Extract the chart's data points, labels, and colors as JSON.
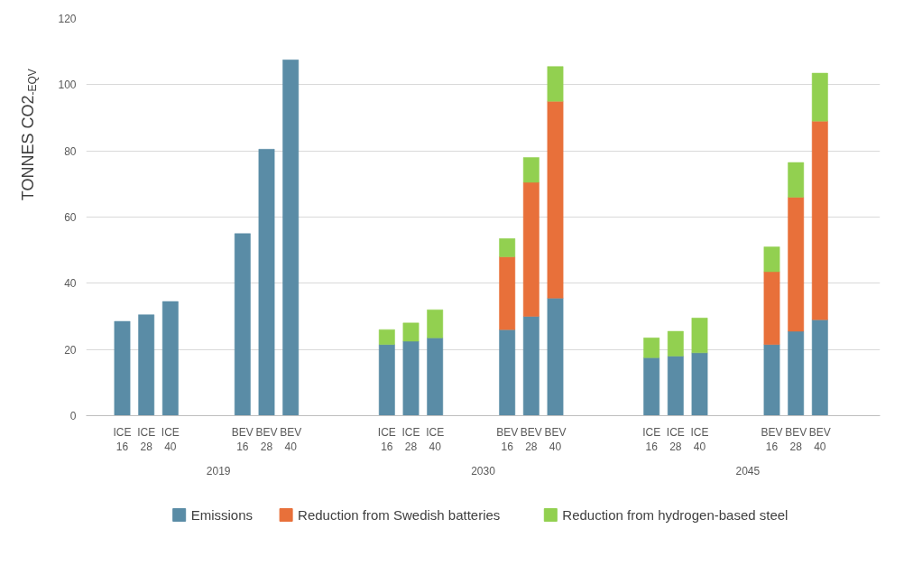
{
  "chart_data": {
    "type": "bar",
    "stacked": true,
    "ylabel": "TONNES CO2$_{-EQV}$",
    "categories": [
      null,
      "ICE\n16",
      "ICE\n28",
      "ICE\n40",
      null,
      null,
      "BEV\n16",
      "BEV\n28",
      "BEV\n40",
      null,
      null,
      null,
      "ICE\n16",
      "ICE\n28",
      "ICE\n40",
      null,
      null,
      "BEV\n16",
      "BEV\n28",
      "BEV\n40",
      null,
      null,
      null,
      "ICE\n16",
      "ICE\n28",
      "ICE\n40",
      null,
      null,
      "BEV\n16",
      "BEV\n28",
      "BEV\n40",
      null,
      null
    ],
    "series": [
      {
        "name": "Emissions",
        "color": "#5a8ca6",
        "values": [
          null,
          28.5,
          30.5,
          34.5,
          null,
          null,
          55,
          80.5,
          107.5,
          null,
          null,
          null,
          21.5,
          22.5,
          23.5,
          null,
          null,
          26,
          30,
          35.5,
          null,
          null,
          null,
          17.5,
          18,
          19,
          null,
          null,
          21.5,
          25.5,
          29,
          null,
          null
        ]
      },
      {
        "name": "Reduction from Swedish batteries",
        "color": "#e8703a",
        "values": [
          null,
          null,
          null,
          null,
          null,
          null,
          null,
          null,
          null,
          null,
          null,
          null,
          null,
          null,
          null,
          null,
          null,
          22,
          40.5,
          59.5,
          null,
          null,
          null,
          null,
          null,
          null,
          null,
          null,
          22,
          40.5,
          60,
          null,
          null
        ]
      },
      {
        "name": "Reduction from hydrogen-based steel",
        "color": "#92d050",
        "values": [
          null,
          null,
          null,
          null,
          null,
          null,
          null,
          null,
          null,
          null,
          null,
          null,
          4.5,
          5.5,
          8.5,
          null,
          null,
          5.5,
          7.5,
          10.5,
          null,
          null,
          null,
          6,
          7.5,
          10.5,
          null,
          null,
          7.5,
          10.5,
          14.5,
          null,
          null
        ]
      }
    ],
    "annotations": [
      "2019",
      "2030",
      "2045"
    ],
    "ylim": [
      0,
      120
    ],
    "yticks": [
      0,
      20,
      40,
      60,
      80,
      100,
      120
    ],
    "grid": "y",
    "legend": "bottom"
  }
}
